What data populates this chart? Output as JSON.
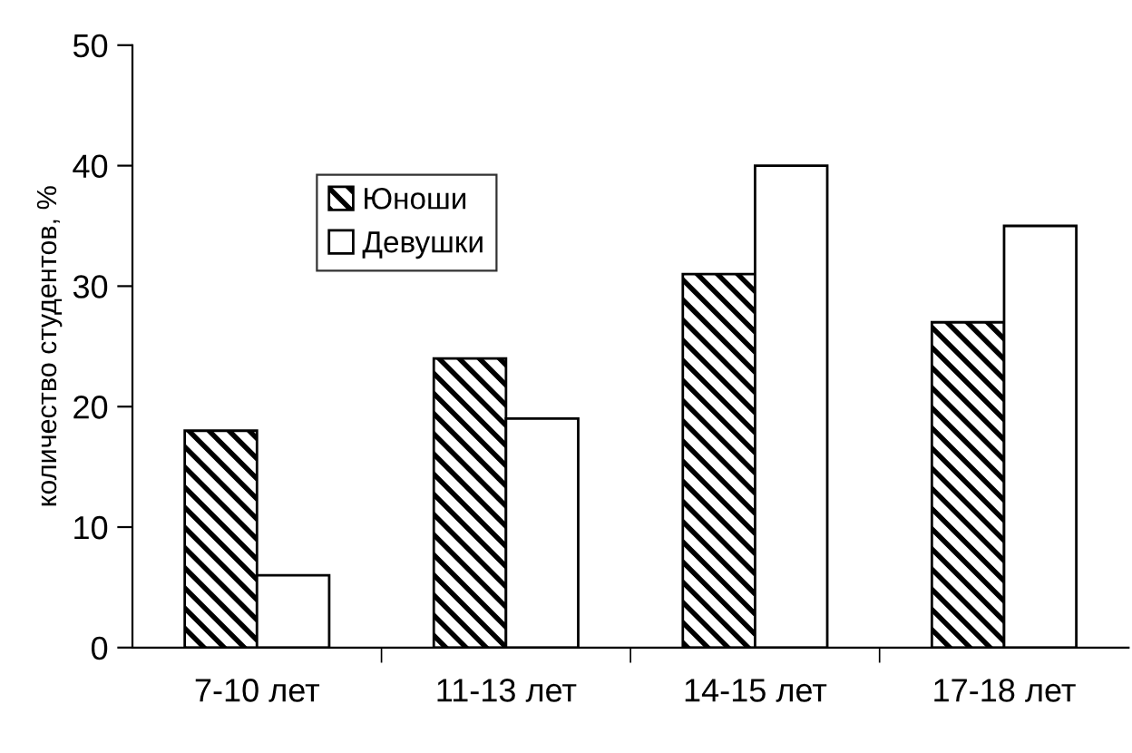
{
  "chart_data": {
    "type": "bar",
    "ylabel": "количество студентов, %",
    "categories": [
      "7-10 лет",
      "11-13 лет",
      "14-15 лет",
      "17-18 лет"
    ],
    "series": [
      {
        "name": "Юноши",
        "color": "#000000",
        "values": [
          18,
          24,
          31,
          27
        ]
      },
      {
        "name": "Девушки",
        "color": "#ffffff",
        "values": [
          6,
          19,
          40,
          35
        ]
      }
    ],
    "ylim": [
      0,
      50
    ],
    "yticks": [
      0,
      10,
      20,
      30,
      40,
      50
    ],
    "grid": false,
    "legend": "top left"
  }
}
